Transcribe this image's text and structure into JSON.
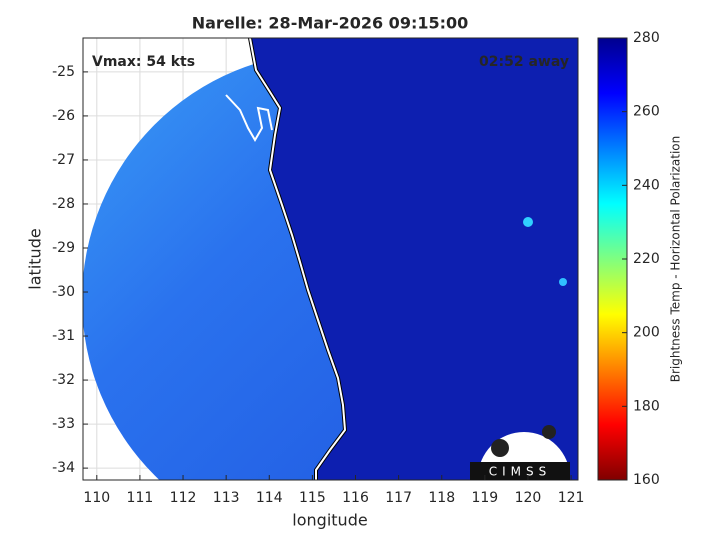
{
  "chart_data": {
    "type": "map",
    "title": "Narelle: 28-Mar-2026 09:15:00",
    "annotations": [
      "Vmax: 54 kts",
      "02:52 away"
    ],
    "xlabel": "longitude",
    "ylabel": "latitude",
    "xlim": [
      109.68,
      121.16
    ],
    "ylim": [
      -34.27,
      -24.23
    ],
    "xticks": [
      110,
      111,
      112,
      113,
      114,
      115,
      116,
      117,
      118,
      119,
      120,
      121
    ],
    "yticks": [
      -25,
      -26,
      -27,
      -28,
      -29,
      -30,
      -31,
      -32,
      -33,
      -34
    ],
    "grid": true,
    "colorbar": {
      "label": "Brightness Temp - Horizontal Polarization",
      "colormap": "jet",
      "clim": [
        160,
        280
      ],
      "ticks": [
        160,
        180,
        200,
        220,
        240,
        260,
        280
      ]
    },
    "logo": "CIMSS"
  }
}
